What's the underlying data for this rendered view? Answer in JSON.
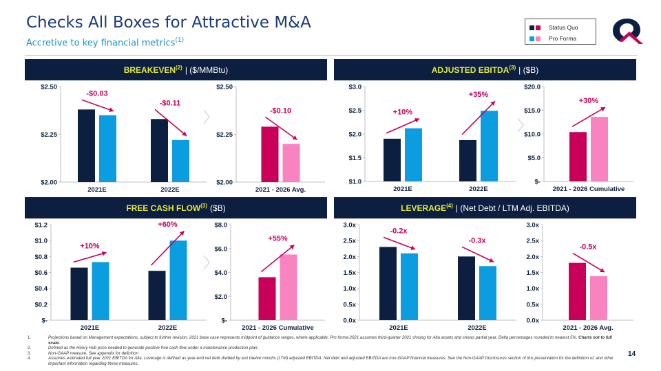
{
  "header": {
    "title": "Checks All Boxes for Attractive M&A",
    "subtitle": "Accretive to key financial metrics",
    "subtitle_sup": "(1)"
  },
  "legend": {
    "items": [
      {
        "label": "Status Quo",
        "color_a": "#0d1f40",
        "color_b": "#c8005a"
      },
      {
        "label": "Pro Forma",
        "color_a": "#0c9de0",
        "color_b": "#f983c1"
      }
    ]
  },
  "colors": {
    "navy": "#0d1f40",
    "blue": "#0c9de0",
    "magenta": "#c8005a",
    "pink": "#f983c1",
    "delta": "#c8005a"
  },
  "sections": {
    "breakeven": {
      "label": "BREAKEVEN",
      "sup": "(2)",
      "rest": "| ($/MMBtu)"
    },
    "ebitda": {
      "label": "ADJUSTED EBITDA",
      "sup": "(3)",
      "rest": "| ($B)"
    },
    "fcf": {
      "label": "FREE CASH FLOW",
      "sup": "(3)",
      "rest": "($B)"
    },
    "leverage": {
      "label": "LEVERAGE",
      "sup": "(4)",
      "rest": "| (Net Debt / LTM Adj. EBITDA)"
    }
  },
  "chart_data": [
    {
      "id": "breakeven_annual",
      "type": "bar",
      "categories": [
        "2021E",
        "2022E"
      ],
      "series": [
        {
          "name": "Status Quo",
          "values": [
            2.38,
            2.33
          ]
        },
        {
          "name": "Pro Forma",
          "values": [
            2.35,
            2.22
          ]
        }
      ],
      "ylim": [
        2.0,
        2.5
      ],
      "yticks": [
        "$2.00",
        "$2.25",
        "$2.50"
      ],
      "ytick_values": [
        2.0,
        2.25,
        2.5
      ],
      "annotations": [
        "-$0.03",
        "-$0.11"
      ],
      "arrow": "down"
    },
    {
      "id": "breakeven_cum",
      "type": "bar",
      "categories": [
        "2021 - 2026 Avg."
      ],
      "series": [
        {
          "name": "Status Quo",
          "values": [
            2.29
          ]
        },
        {
          "name": "Pro Forma",
          "values": [
            2.2
          ]
        }
      ],
      "ylim": [
        2.0,
        2.5
      ],
      "yticks": [
        "$2.00",
        "$2.25",
        "$2.50"
      ],
      "ytick_values": [
        2.0,
        2.25,
        2.5
      ],
      "annotations": [
        "-$0.10"
      ],
      "arrow": "down"
    },
    {
      "id": "ebitda_annual",
      "type": "bar",
      "categories": [
        "2021E",
        "2022E"
      ],
      "series": [
        {
          "name": "Status Quo",
          "values": [
            1.9,
            1.87
          ]
        },
        {
          "name": "Pro Forma",
          "values": [
            2.12,
            2.49
          ]
        }
      ],
      "ylim": [
        1.0,
        3.0
      ],
      "yticks": [
        "$1.0",
        "$1.5",
        "$2.0",
        "$2.5",
        "$3.0"
      ],
      "ytick_values": [
        1.0,
        1.5,
        2.0,
        2.5,
        3.0
      ],
      "annotations": [
        "+10%",
        "+35%"
      ],
      "arrow": "up"
    },
    {
      "id": "ebitda_cum",
      "type": "bar",
      "categories": [
        "2021 - 2026 Cumulative"
      ],
      "series": [
        {
          "name": "Status Quo",
          "values": [
            10.4
          ]
        },
        {
          "name": "Pro Forma",
          "values": [
            13.6
          ]
        }
      ],
      "ylim": [
        0,
        20
      ],
      "yticks": [
        "$-",
        "$5.0",
        "$10.0",
        "$15.0",
        "$20.0"
      ],
      "ytick_values": [
        0,
        5,
        10,
        15,
        20
      ],
      "annotations": [
        "+30%"
      ],
      "arrow": "up"
    },
    {
      "id": "fcf_annual",
      "type": "bar",
      "categories": [
        "2021E",
        "2022E"
      ],
      "series": [
        {
          "name": "Status Quo",
          "values": [
            0.66,
            0.62
          ]
        },
        {
          "name": "Pro Forma",
          "values": [
            0.73,
            1.0
          ]
        }
      ],
      "ylim": [
        0,
        1.2
      ],
      "yticks": [
        "$-",
        "$0.2",
        "$0.4",
        "$0.6",
        "$0.8",
        "$1.0",
        "$1.2"
      ],
      "ytick_values": [
        0,
        0.2,
        0.4,
        0.6,
        0.8,
        1.0,
        1.2
      ],
      "annotations": [
        "+10%",
        "+60%"
      ],
      "arrow": "up"
    },
    {
      "id": "fcf_cum",
      "type": "bar",
      "categories": [
        "2021 - 2026 Cumulative"
      ],
      "series": [
        {
          "name": "Status Quo",
          "values": [
            3.6
          ]
        },
        {
          "name": "Pro Forma",
          "values": [
            5.5
          ]
        }
      ],
      "ylim": [
        0,
        8
      ],
      "yticks": [
        "$-",
        "$2.0",
        "$4.0",
        "$6.0",
        "$8.0"
      ],
      "ytick_values": [
        0,
        2,
        4,
        6,
        8
      ],
      "annotations": [
        "+55%"
      ],
      "arrow": "up"
    },
    {
      "id": "leverage_annual",
      "type": "bar",
      "categories": [
        "2021E",
        "2022E"
      ],
      "series": [
        {
          "name": "Status Quo",
          "values": [
            2.3,
            2.0
          ]
        },
        {
          "name": "Pro Forma",
          "values": [
            2.1,
            1.7
          ]
        }
      ],
      "ylim": [
        0,
        3.0
      ],
      "yticks": [
        "0.0x",
        "0.5x",
        "1.0x",
        "1.5x",
        "2.0x",
        "2.5x",
        "3.0x"
      ],
      "ytick_values": [
        0,
        0.5,
        1.0,
        1.5,
        2.0,
        2.5,
        3.0
      ],
      "annotations": [
        "-0.2x",
        "-0.3x"
      ],
      "arrow": "down"
    },
    {
      "id": "leverage_cum",
      "type": "bar",
      "categories": [
        "2021 - 2026 Avg."
      ],
      "series": [
        {
          "name": "Status Quo",
          "values": [
            1.8
          ]
        },
        {
          "name": "Pro Forma",
          "values": [
            1.38
          ]
        }
      ],
      "ylim": [
        0,
        3.0
      ],
      "yticks": [
        "0.0x",
        "0.5x",
        "1.0x",
        "1.5x",
        "2.0x",
        "2.5x",
        "3.0x"
      ],
      "ytick_values": [
        0,
        0.5,
        1.0,
        1.5,
        2.0,
        2.5,
        3.0
      ],
      "annotations": [
        "-0.5x"
      ],
      "arrow": "down"
    }
  ],
  "footnotes": [
    {
      "n": "1.",
      "text": "Projections based on Management expectations, subject to further revision. 2021 base case represents midpoint of guidance ranges, where applicable. Pro forma 2021 assumes third-quarter 2021 closing for Alta assets and shows partial year. Delta percentages rounded to nearest 5%.",
      "bold": " Charts not to full scale."
    },
    {
      "n": "2.",
      "text": "Defined as the Henry Hub price needed to generate positive free cash flow under a maintenance production plan.",
      "bold": ""
    },
    {
      "n": "3.",
      "text": "Non-GAAP measure. See appendix for definition",
      "bold": ""
    },
    {
      "n": "4.",
      "text": "Assumes estimated full year 2021 EBITDA for Alta. Leverage is defined as year-end net debt divided by last twelve months (LTM) adjusted EBITDA.  Net debt and adjusted EBITDA are non-GAAP financial measures. See the Non-GAAP Disclosures section of this presentation for the definition of, and other important information regarding these measures.",
      "bold": ""
    }
  ],
  "page_number": "14"
}
